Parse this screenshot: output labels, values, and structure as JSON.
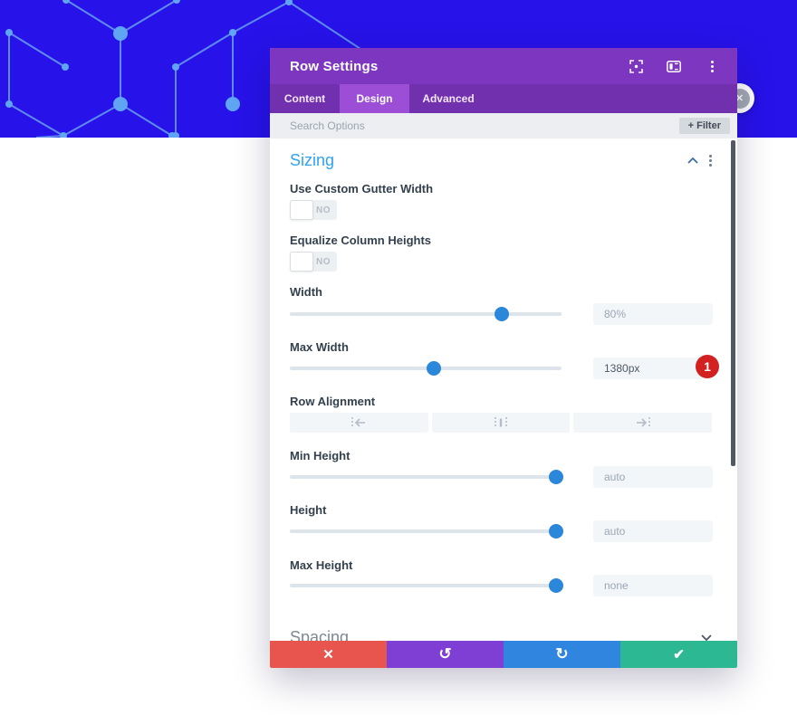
{
  "colors": {
    "band_blue": "#2712e9",
    "pattern_blue": "#5e8bf0",
    "header_purple": "#7c36c0",
    "tabbar_purple": "#7130ae",
    "tab_active_purple": "#9c4fd6",
    "section_title_blue": "#2ea3f2",
    "slider_blue": "#2b87da",
    "badge_red": "#d32121",
    "footer_discard_red": "#e8554e",
    "footer_undo_purple": "#7f3fd4",
    "footer_redo_blue": "#3085df",
    "footer_save_green": "#2cb893"
  },
  "modal": {
    "title": "Row Settings",
    "header_icons": [
      "snap-icon",
      "columns-layout-icon",
      "ellipsis-icon"
    ],
    "tabs": [
      {
        "label": "Content",
        "active": false
      },
      {
        "label": "Design",
        "active": true
      },
      {
        "label": "Advanced",
        "active": false
      }
    ],
    "search_placeholder": "Search Options",
    "filter_button": "+ Filter",
    "sizing": {
      "title": "Sizing",
      "gutter_toggle": {
        "label": "Use Custom Gutter Width",
        "value": "NO"
      },
      "equalize_toggle": {
        "label": "Equalize Column Heights",
        "value": "NO"
      },
      "width": {
        "label": "Width",
        "value": "80%",
        "percent": 78
      },
      "max_width": {
        "label": "Max Width",
        "value": "1380px",
        "percent": 53,
        "badge": "1"
      },
      "row_alignment": {
        "label": "Row Alignment",
        "options": [
          "align-left-icon",
          "align-center-icon",
          "align-right-icon"
        ]
      },
      "min_height": {
        "label": "Min Height",
        "value": "auto",
        "percent": 98
      },
      "height": {
        "label": "Height",
        "value": "auto",
        "percent": 98
      },
      "max_height": {
        "label": "Max Height",
        "value": "none",
        "percent": 98
      }
    },
    "next_section_title": "Spacing",
    "footer": {
      "buttons": [
        {
          "name": "discard",
          "icon": "✕"
        },
        {
          "name": "undo",
          "icon": "↺"
        },
        {
          "name": "redo",
          "icon": "↻"
        },
        {
          "name": "save",
          "icon": "✔"
        }
      ]
    },
    "close_fab_icon": "✕"
  }
}
